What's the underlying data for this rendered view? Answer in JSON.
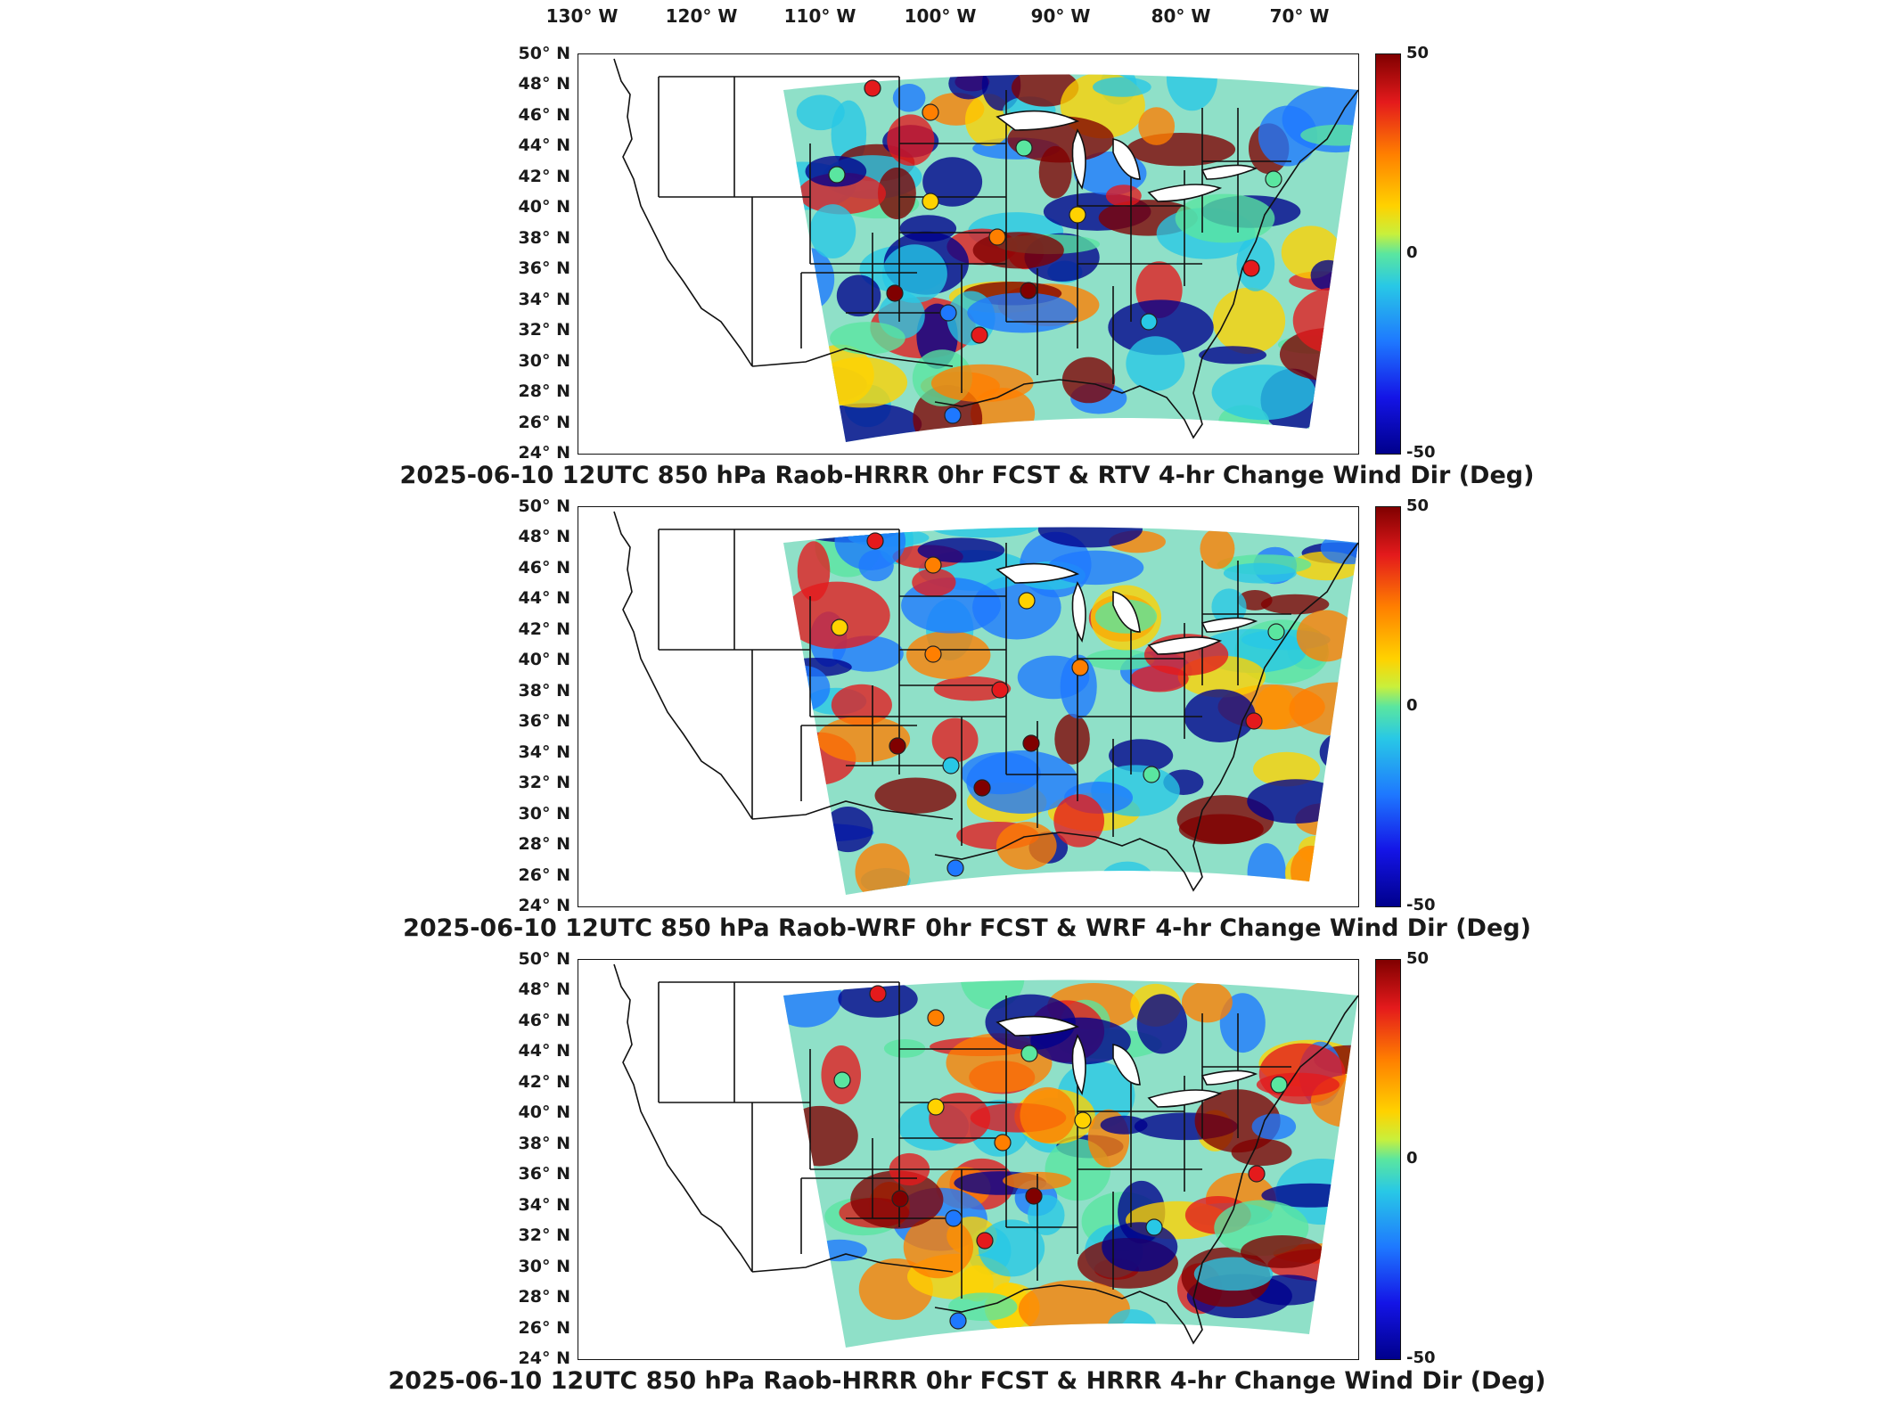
{
  "longitude_labels": [
    "130° W",
    "120° W",
    "110° W",
    "100° W",
    "90° W",
    "80° W",
    "70° W"
  ],
  "latitude_labels": [
    "50° N",
    "48° N",
    "46° N",
    "44° N",
    "42° N",
    "40° N",
    "38° N",
    "36° N",
    "34° N",
    "32° N",
    "30° N",
    "28° N",
    "26° N",
    "24° N"
  ],
  "colorbar": {
    "max_label": "50",
    "mid_label": "0",
    "min_label": "-50",
    "range": [
      -50,
      50
    ]
  },
  "panels": [
    {
      "title": "2025-06-10 12UTC 850 hPa Raob-HRRR 0hr FCST & RTV 4-hr Change Wind Dir (Deg)"
    },
    {
      "title": "2025-06-10 12UTC 850 hPa Raob-WRF 0hr FCST & WRF 4-hr Change Wind Dir (Deg)"
    },
    {
      "title": "2025-06-10 12UTC 850 hPa Raob-HRRR 0hr FCST & HRRR 4-hr Change Wind Dir (Deg)"
    }
  ],
  "colors": {
    "dark_red": "#800000",
    "red": "#e41a1c",
    "orange": "#ff7f00",
    "yellow": "#ffd200",
    "green": "#5ae6a0",
    "cyan": "#28c8e6",
    "blue": "#1e78ff",
    "dark_blue": "#00008c"
  },
  "raob_stations": [
    {
      "value": 30
    },
    {
      "value": 20
    },
    {
      "value": 5
    },
    {
      "value": 10
    },
    {
      "value": 50
    },
    {
      "value": 45
    },
    {
      "value": -20
    },
    {
      "value": 0
    },
    {
      "value": 25
    },
    {
      "value": -10
    },
    {
      "value": 15
    },
    {
      "value": 40
    },
    {
      "value": -5
    },
    {
      "value": 35
    },
    {
      "value": -30
    }
  ]
}
